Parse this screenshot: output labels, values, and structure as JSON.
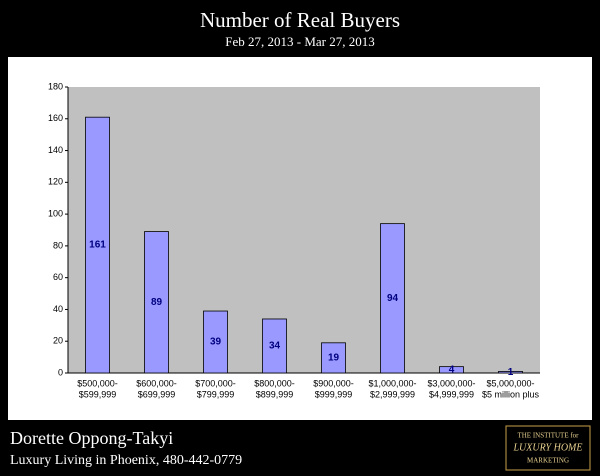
{
  "chart_data": {
    "type": "bar",
    "title": "Number of Real Buyers",
    "subtitle": "Feb 27, 2013 - Mar 27, 2013",
    "categories": [
      [
        "$500,000-",
        "$599,999"
      ],
      [
        "$600,000-",
        "$699,999"
      ],
      [
        "$700,000-",
        "$799,999"
      ],
      [
        "$800,000-",
        "$899,999"
      ],
      [
        "$900,000-",
        "$999,999"
      ],
      [
        "$1,000,000-",
        "$2,999,999"
      ],
      [
        "$3,000,000-",
        "$4,999,999"
      ],
      [
        "$5,000,000-",
        "$5 million plus"
      ]
    ],
    "values": [
      161,
      89,
      39,
      34,
      19,
      94,
      4,
      1
    ],
    "color": "#9999ff",
    "ylim": [
      0,
      180
    ],
    "yticks": [
      0,
      20,
      40,
      60,
      80,
      100,
      120,
      140,
      160,
      180
    ],
    "grid": false
  },
  "footer": {
    "name": "Dorette Oppong-Takyi",
    "tagline": "Luxury Living in Phoenix, 480-442-0779",
    "logo": [
      "THE INSTITUTE for",
      "LUXURY HOME",
      "MARKETING"
    ]
  }
}
